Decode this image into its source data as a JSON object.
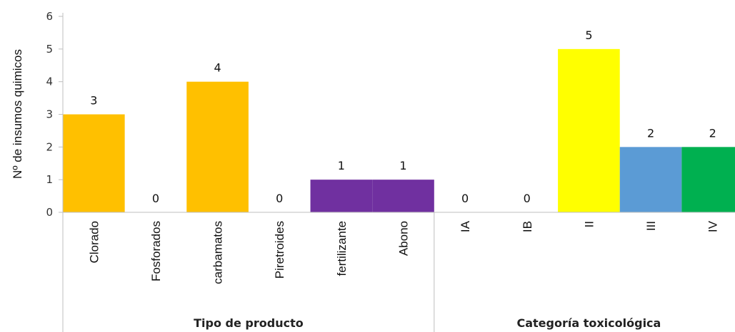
{
  "chart_data": {
    "type": "bar",
    "ylabel": "Nº de insumos quimicos",
    "ylim": [
      0,
      6
    ],
    "yticks": [
      "0",
      "1",
      "2",
      "3",
      "4",
      "5",
      "6"
    ],
    "grid": false,
    "categories": [
      "Clorado",
      "Fosforados",
      "carbamatos",
      "Piretroides",
      "fertilizante",
      "Abono",
      "IA",
      "IB",
      "II",
      "III",
      "IV"
    ],
    "values": [
      3,
      0,
      4,
      0,
      1,
      1,
      0,
      0,
      5,
      2,
      2
    ],
    "data_labels": [
      "3",
      "0",
      "4",
      "0",
      "1",
      "1",
      "0",
      "0",
      "5",
      "2",
      "2"
    ],
    "bar_colors": [
      "#FFC000",
      "#FFC000",
      "#FFC000",
      "#FFC000",
      "#7030A0",
      "#7030A0",
      "#FFFF00",
      "#FFFF00",
      "#FFFF00",
      "#5B9BD5",
      "#00B050"
    ],
    "groups": [
      {
        "label": "Tipo de producto",
        "from": 0,
        "to": 5
      },
      {
        "label": "Categoría toxicológica",
        "from": 6,
        "to": 10
      }
    ]
  }
}
